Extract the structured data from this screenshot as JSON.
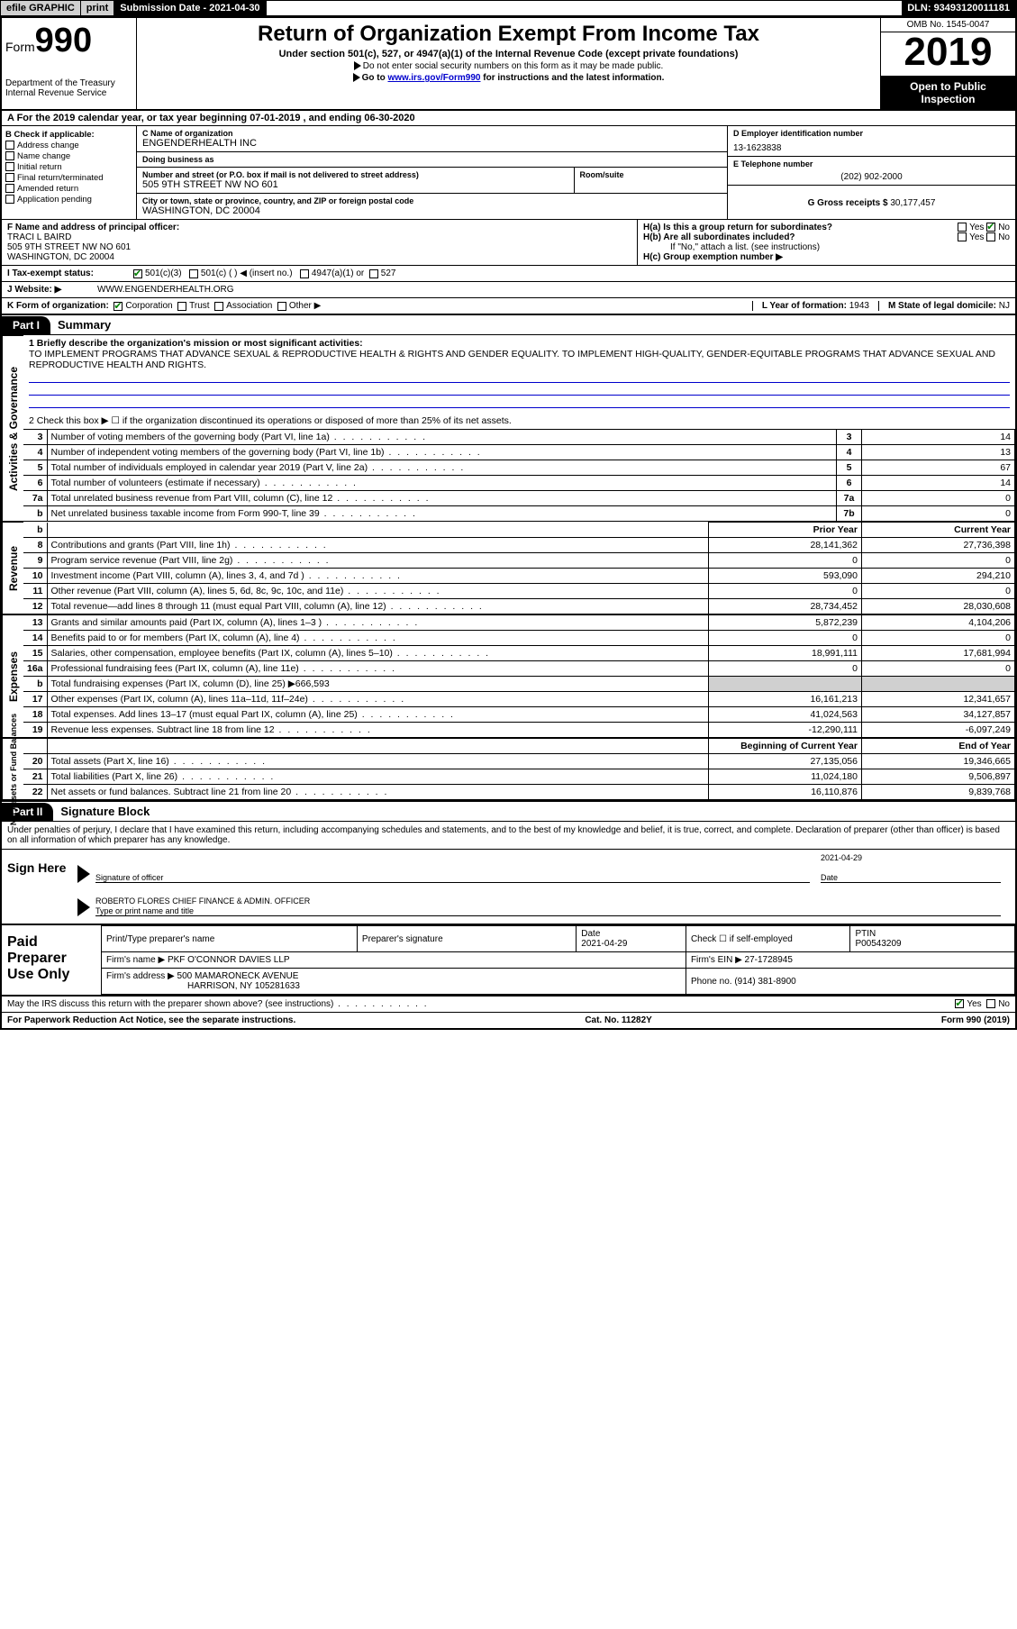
{
  "topbar": {
    "efile": "efile GRAPHIC",
    "print": "print",
    "sub_date_label": "Submission Date - ",
    "sub_date": "2021-04-30",
    "dln_label": "DLN: ",
    "dln": "93493120011181"
  },
  "header": {
    "form_word": "Form",
    "form_num": "990",
    "dept": "Department of the Treasury",
    "irs": "Internal Revenue Service",
    "title": "Return of Organization Exempt From Income Tax",
    "sub": "Under section 501(c), 527, or 4947(a)(1) of the Internal Revenue Code (except private foundations)",
    "note1": "Do not enter social security numbers on this form as it may be made public.",
    "note2_pre": "Go to ",
    "note2_link": "www.irs.gov/Form990",
    "note2_post": " for instructions and the latest information.",
    "omb": "OMB No. 1545-0047",
    "year": "2019",
    "open": "Open to Public Inspection"
  },
  "section_a": "A For the 2019 calendar year, or tax year beginning 07-01-2019    , and ending 06-30-2020",
  "box_b": {
    "label": "B Check if applicable:",
    "opts": [
      "Address change",
      "Name change",
      "Initial return",
      "Final return/terminated",
      "Amended return",
      "Application pending"
    ]
  },
  "box_c": {
    "name_lab": "C Name of organization",
    "name": "ENGENDERHEALTH INC",
    "dba_lab": "Doing business as",
    "dba": "",
    "addr_lab": "Number and street (or P.O. box if mail is not delivered to street address)",
    "room_lab": "Room/suite",
    "addr": "505 9TH STREET NW NO 601",
    "city_lab": "City or town, state or province, country, and ZIP or foreign postal code",
    "city": "WASHINGTON, DC  20004"
  },
  "box_d": {
    "lab": "D Employer identification number",
    "val": "13-1623838"
  },
  "box_e": {
    "lab": "E Telephone number",
    "val": "(202) 902-2000"
  },
  "box_g": {
    "lab": "G Gross receipts $ ",
    "val": "30,177,457"
  },
  "box_f": {
    "lab": "F  Name and address of principal officer:",
    "name": "TRACI L BAIRD",
    "addr1": "505 9TH STREET NW NO 601",
    "addr2": "WASHINGTON, DC  20004"
  },
  "box_h": {
    "ha": "H(a)  Is this a group return for subordinates?",
    "hb": "H(b)  Are all subordinates included?",
    "hb_note": "If \"No,\" attach a list. (see instructions)",
    "hc": "H(c)  Group exemption number ▶",
    "yes": "Yes",
    "no": "No"
  },
  "tax_status": {
    "lab": "I    Tax-exempt status:",
    "o1": "501(c)(3)",
    "o2": "501(c) (   ) ◀ (insert no.)",
    "o3": "4947(a)(1) or",
    "o4": "527"
  },
  "website": {
    "lab": "J    Website: ▶",
    "val": "WWW.ENGENDERHEALTH.ORG"
  },
  "k_org": {
    "lab": "K Form of organization:",
    "opts": [
      "Corporation",
      "Trust",
      "Association",
      "Other ▶"
    ],
    "l_lab": "L Year of formation: ",
    "l_val": "1943",
    "m_lab": "M State of legal domicile: ",
    "m_val": "NJ"
  },
  "part1": {
    "lab": "Part I",
    "title": "Summary"
  },
  "summary": {
    "l1_lab": "1  Briefly describe the organization's mission or most significant activities:",
    "l1_txt": "TO IMPLEMENT PROGRAMS THAT ADVANCE SEXUAL & REPRODUCTIVE HEALTH & RIGHTS AND GENDER EQUALITY. TO IMPLEMENT HIGH-QUALITY, GENDER-EQUITABLE PROGRAMS THAT ADVANCE SEXUAL AND REPRODUCTIVE HEALTH AND RIGHTS.",
    "l2": "2   Check this box ▶ ☐  if the organization discontinued its operations or disposed of more than 25% of its net assets.",
    "rows_ag": [
      {
        "n": "3",
        "d": "Number of voting members of the governing body (Part VI, line 1a)",
        "box": "3",
        "v": "14"
      },
      {
        "n": "4",
        "d": "Number of independent voting members of the governing body (Part VI, line 1b)",
        "box": "4",
        "v": "13"
      },
      {
        "n": "5",
        "d": "Total number of individuals employed in calendar year 2019 (Part V, line 2a)",
        "box": "5",
        "v": "67"
      },
      {
        "n": "6",
        "d": "Total number of volunteers (estimate if necessary)",
        "box": "6",
        "v": "14"
      },
      {
        "n": "7a",
        "d": "Total unrelated business revenue from Part VIII, column (C), line 12",
        "box": "7a",
        "v": "0"
      },
      {
        "n": "b",
        "d": "Net unrelated business taxable income from Form 990-T, line 39",
        "box": "7b",
        "v": "0"
      }
    ],
    "prior_lab": "Prior Year",
    "curr_lab": "Current Year",
    "rev_rows": [
      {
        "n": "8",
        "d": "Contributions and grants (Part VIII, line 1h)",
        "p": "28,141,362",
        "c": "27,736,398"
      },
      {
        "n": "9",
        "d": "Program service revenue (Part VIII, line 2g)",
        "p": "0",
        "c": "0"
      },
      {
        "n": "10",
        "d": "Investment income (Part VIII, column (A), lines 3, 4, and 7d )",
        "p": "593,090",
        "c": "294,210"
      },
      {
        "n": "11",
        "d": "Other revenue (Part VIII, column (A), lines 5, 6d, 8c, 9c, 10c, and 11e)",
        "p": "0",
        "c": "0"
      },
      {
        "n": "12",
        "d": "Total revenue—add lines 8 through 11 (must equal Part VIII, column (A), line 12)",
        "p": "28,734,452",
        "c": "28,030,608"
      }
    ],
    "exp_rows": [
      {
        "n": "13",
        "d": "Grants and similar amounts paid (Part IX, column (A), lines 1–3 )",
        "p": "5,872,239",
        "c": "4,104,206"
      },
      {
        "n": "14",
        "d": "Benefits paid to or for members (Part IX, column (A), line 4)",
        "p": "0",
        "c": "0"
      },
      {
        "n": "15",
        "d": "Salaries, other compensation, employee benefits (Part IX, column (A), lines 5–10)",
        "p": "18,991,111",
        "c": "17,681,994"
      },
      {
        "n": "16a",
        "d": "Professional fundraising fees (Part IX, column (A), line 11e)",
        "p": "0",
        "c": "0"
      },
      {
        "n": "b",
        "d": "Total fundraising expenses (Part IX, column (D), line 25) ▶666,593",
        "p": "",
        "c": "",
        "shade": true
      },
      {
        "n": "17",
        "d": "Other expenses (Part IX, column (A), lines 11a–11d, 11f–24e)",
        "p": "16,161,213",
        "c": "12,341,657"
      },
      {
        "n": "18",
        "d": "Total expenses. Add lines 13–17 (must equal Part IX, column (A), line 25)",
        "p": "41,024,563",
        "c": "34,127,857"
      },
      {
        "n": "19",
        "d": "Revenue less expenses. Subtract line 18 from line 12",
        "p": "-12,290,111",
        "c": "-6,097,249"
      }
    ],
    "na_hdr_p": "Beginning of Current Year",
    "na_hdr_c": "End of Year",
    "na_rows": [
      {
        "n": "20",
        "d": "Total assets (Part X, line 16)",
        "p": "27,135,056",
        "c": "19,346,665"
      },
      {
        "n": "21",
        "d": "Total liabilities (Part X, line 26)",
        "p": "11,024,180",
        "c": "9,506,897"
      },
      {
        "n": "22",
        "d": "Net assets or fund balances. Subtract line 21 from line 20",
        "p": "16,110,876",
        "c": "9,839,768"
      }
    ],
    "vtabs": {
      "ag": "Activities & Governance",
      "rev": "Revenue",
      "exp": "Expenses",
      "na": "Net Assets or Fund Balances"
    }
  },
  "part2": {
    "lab": "Part II",
    "title": "Signature Block"
  },
  "sig": {
    "penalty": "Under penalties of perjury, I declare that I have examined this return, including accompanying schedules and statements, and to the best of my knowledge and belief, it is true, correct, and complete. Declaration of preparer (other than officer) is based on all information of which preparer has any knowledge.",
    "sign_here": "Sign Here",
    "sig_officer_lab": "Signature of officer",
    "date_lab": "Date",
    "date_val": "2021-04-29",
    "name_title": "ROBERTO FLORES  CHIEF FINANCE & ADMIN. OFFICER",
    "name_title_lab": "Type or print name and title"
  },
  "paid": {
    "label": "Paid Preparer Use Only",
    "prep_name_lab": "Print/Type preparer's name",
    "prep_sig_lab": "Preparer's signature",
    "date_lab": "Date",
    "date_val": "2021-04-29",
    "check_lab": "Check ☐ if self-employed",
    "ptin_lab": "PTIN",
    "ptin_val": "P00543209",
    "firm_name_lab": "Firm's name      ▶",
    "firm_name": "PKF O'CONNOR DAVIES LLP",
    "firm_ein_lab": "Firm's EIN ▶",
    "firm_ein": "27-1728945",
    "firm_addr_lab": "Firm's address ▶",
    "firm_addr1": "500 MAMARONECK AVENUE",
    "firm_addr2": "HARRISON, NY  105281633",
    "phone_lab": "Phone no. ",
    "phone": "(914) 381-8900"
  },
  "footer": {
    "discuss": "May the IRS discuss this return with the preparer shown above? (see instructions)",
    "yes": "Yes",
    "no": "No",
    "paperwork": "For Paperwork Reduction Act Notice, see the separate instructions.",
    "cat": "Cat. No. 11282Y",
    "formref": "Form 990 (2019)"
  }
}
